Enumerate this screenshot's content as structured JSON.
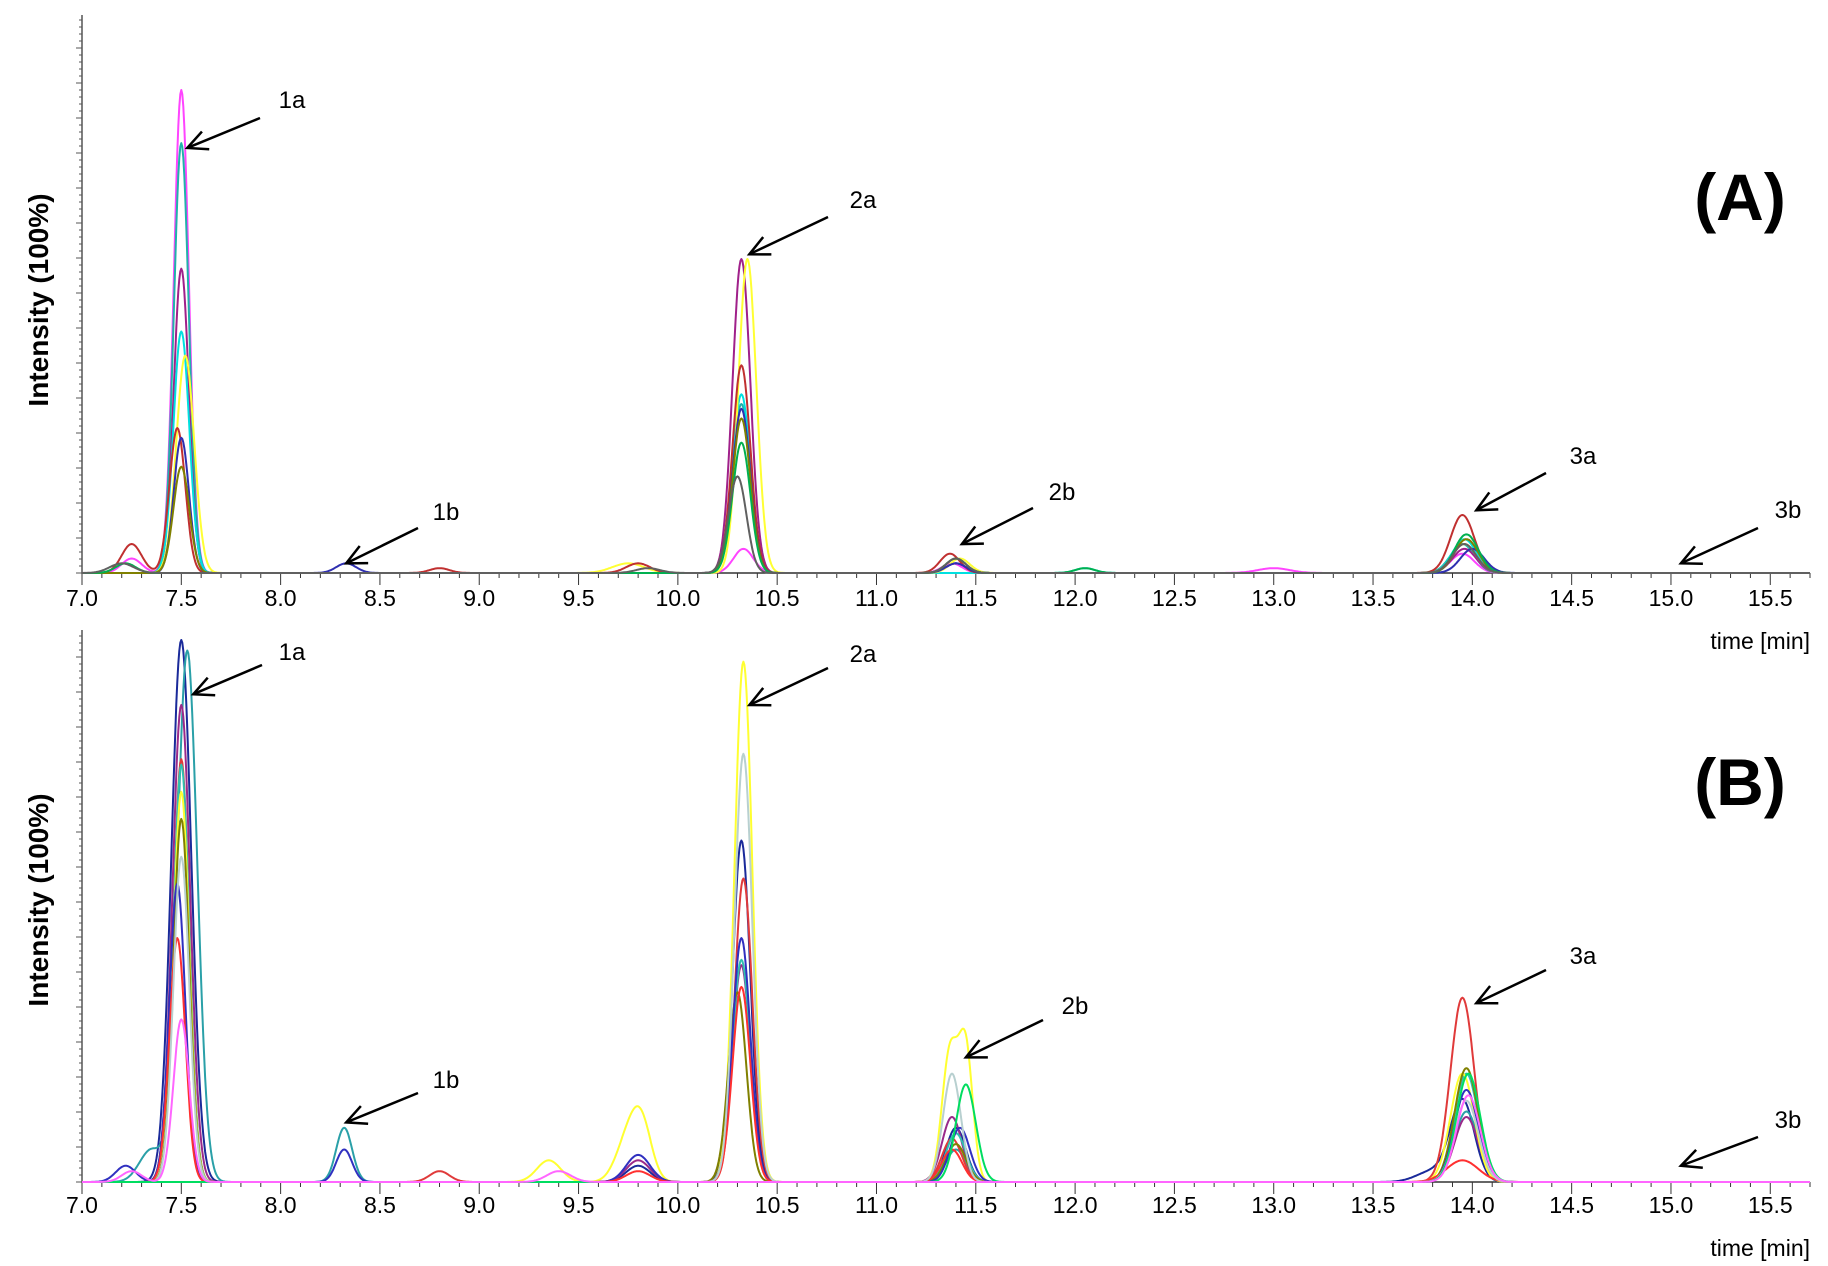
{
  "chart_data": [
    {
      "type": "line",
      "panel_label": "(A)",
      "ylabel": "Intensity (100%)",
      "xlabel": "time [min]",
      "xlim": [
        7.0,
        15.7
      ],
      "ylim": [
        0,
        100
      ],
      "xticks": [
        "7.0",
        "7.5",
        "8.0",
        "8.5",
        "9.0",
        "9.5",
        "10.0",
        "10.5",
        "11.0",
        "11.5",
        "12.0",
        "12.5",
        "13.0",
        "13.5",
        "14.0",
        "14.5",
        "15.0",
        "15.5"
      ],
      "grid": false,
      "annotations": [
        {
          "label": "1a",
          "x": 7.53,
          "y": 88
        },
        {
          "label": "1b",
          "x": 8.33,
          "y": 2
        },
        {
          "label": "2a",
          "x": 10.36,
          "y": 66
        },
        {
          "label": "2b",
          "x": 11.43,
          "y": 6
        },
        {
          "label": "3a",
          "x": 14.02,
          "y": 13
        },
        {
          "label": "3b",
          "x": 15.05,
          "y": 2
        }
      ],
      "series": [
        {
          "color": "#ff44ff",
          "peaks": [
            [
              7.25,
              3,
              0.05
            ],
            [
              7.5,
              100,
              0.038
            ],
            [
              10.33,
              5,
              0.05
            ],
            [
              11.38,
              2,
              0.05
            ],
            [
              13.0,
              1,
              0.08
            ],
            [
              13.95,
              4,
              0.06
            ]
          ]
        },
        {
          "color": "#20b2aa",
          "peaks": [
            [
              7.5,
              89,
              0.038
            ],
            [
              10.32,
              35,
              0.045
            ],
            [
              11.4,
              2,
              0.05
            ],
            [
              13.95,
              6,
              0.06
            ]
          ]
        },
        {
          "color": "#a0208a",
          "peaks": [
            [
              7.5,
              63,
              0.038
            ],
            [
              10.32,
              65,
              0.045
            ],
            [
              11.4,
              2,
              0.05
            ],
            [
              13.96,
              5,
              0.06
            ]
          ]
        },
        {
          "color": "#00e0e0",
          "peaks": [
            [
              7.5,
              50,
              0.04
            ],
            [
              10.32,
              37,
              0.045
            ],
            [
              12.05,
              1,
              0.05
            ],
            [
              13.96,
              7,
              0.06
            ]
          ]
        },
        {
          "color": "#ffff33",
          "peaks": [
            [
              7.52,
              45,
              0.045
            ],
            [
              9.75,
              2,
              0.08
            ],
            [
              10.35,
              65,
              0.045
            ],
            [
              11.42,
              3,
              0.05
            ],
            [
              13.96,
              6,
              0.06
            ]
          ]
        },
        {
          "color": "#c03030",
          "peaks": [
            [
              7.25,
              6,
              0.05
            ],
            [
              7.48,
              30,
              0.04
            ],
            [
              8.8,
              1,
              0.05
            ],
            [
              9.8,
              2,
              0.06
            ],
            [
              10.32,
              43,
              0.045
            ],
            [
              11.37,
              4,
              0.05
            ],
            [
              13.95,
              12,
              0.06
            ]
          ]
        },
        {
          "color": "#2f2fb0",
          "peaks": [
            [
              7.5,
              28,
              0.038
            ],
            [
              8.33,
              2,
              0.05
            ],
            [
              10.32,
              34,
              0.045
            ],
            [
              11.4,
              2,
              0.05
            ],
            [
              14.0,
              5,
              0.06
            ]
          ]
        },
        {
          "color": "#808000",
          "peaks": [
            [
              7.5,
              22,
              0.04
            ],
            [
              10.32,
              32,
              0.045
            ],
            [
              11.4,
              3,
              0.05
            ],
            [
              13.97,
              7,
              0.06
            ]
          ]
        },
        {
          "color": "#00b050",
          "peaks": [
            [
              7.22,
              2,
              0.05
            ],
            [
              10.32,
              27,
              0.045
            ],
            [
              11.4,
              3,
              0.05
            ],
            [
              12.05,
              1,
              0.05
            ],
            [
              13.97,
              8,
              0.06
            ]
          ]
        },
        {
          "color": "#606060",
          "peaks": [
            [
              7.2,
              2,
              0.06
            ],
            [
              9.85,
              1,
              0.06
            ],
            [
              10.3,
              20,
              0.045
            ],
            [
              11.4,
              3,
              0.05
            ],
            [
              13.96,
              6,
              0.06
            ]
          ]
        }
      ]
    },
    {
      "type": "line",
      "panel_label": "(B)",
      "ylabel": "Intensity (100%)",
      "xlabel": "time [min]",
      "xlim": [
        7.0,
        15.7
      ],
      "ylim": [
        0,
        100
      ],
      "xticks": [
        "7.0",
        "7.5",
        "8.0",
        "8.5",
        "9.0",
        "9.5",
        "10.0",
        "10.5",
        "11.0",
        "11.5",
        "12.0",
        "12.5",
        "13.0",
        "13.5",
        "14.0",
        "14.5",
        "15.0",
        "15.5"
      ],
      "grid": false,
      "annotations": [
        {
          "label": "1a",
          "x": 7.56,
          "y": 90
        },
        {
          "label": "1b",
          "x": 8.33,
          "y": 11
        },
        {
          "label": "2a",
          "x": 10.36,
          "y": 88
        },
        {
          "label": "2b",
          "x": 11.45,
          "y": 23
        },
        {
          "label": "3a",
          "x": 14.02,
          "y": 33
        },
        {
          "label": "3b",
          "x": 15.05,
          "y": 3
        }
      ],
      "series": [
        {
          "color": "#1a2a9a",
          "peaks": [
            [
              7.5,
              100,
              0.05
            ],
            [
              9.8,
              3,
              0.06
            ],
            [
              10.32,
              63,
              0.045
            ],
            [
              11.4,
              10,
              0.05
            ],
            [
              13.8,
              2,
              0.08
            ],
            [
              13.95,
              15,
              0.06
            ]
          ]
        },
        {
          "color": "#2aa0a8",
          "peaks": [
            [
              7.35,
              6,
              0.06
            ],
            [
              7.53,
              98,
              0.05
            ],
            [
              8.32,
              10,
              0.04
            ],
            [
              11.4,
              6,
              0.05
            ],
            [
              13.97,
              13,
              0.06
            ]
          ]
        },
        {
          "color": "#9a2a8a",
          "peaks": [
            [
              7.5,
              88,
              0.045
            ],
            [
              9.8,
              4,
              0.06
            ],
            [
              10.32,
              40,
              0.045
            ],
            [
              11.38,
              12,
              0.05
            ],
            [
              13.97,
              12,
              0.06
            ]
          ]
        },
        {
          "color": "#e03a3a",
          "peaks": [
            [
              7.5,
              78,
              0.04
            ],
            [
              8.8,
              2,
              0.05
            ],
            [
              10.33,
              56,
              0.045
            ],
            [
              11.38,
              8,
              0.05
            ],
            [
              13.95,
              34,
              0.06
            ]
          ]
        },
        {
          "color": "#30c0b0",
          "peaks": [
            [
              7.5,
              77,
              0.04
            ],
            [
              10.32,
              41,
              0.045
            ],
            [
              11.4,
              9,
              0.05
            ],
            [
              13.97,
              20,
              0.06
            ]
          ]
        },
        {
          "color": "#ffff30",
          "peaks": [
            [
              7.5,
              72,
              0.04
            ],
            [
              9.35,
              4,
              0.06
            ],
            [
              9.75,
              8,
              0.06
            ],
            [
              9.82,
              9,
              0.05
            ],
            [
              10.33,
              96,
              0.045
            ],
            [
              11.37,
              24,
              0.04
            ],
            [
              11.45,
              24,
              0.035
            ],
            [
              13.95,
              20,
              0.06
            ]
          ]
        },
        {
          "color": "#808000",
          "peaks": [
            [
              7.5,
              67,
              0.04
            ],
            [
              10.3,
              35,
              0.045
            ],
            [
              11.4,
              7,
              0.05
            ],
            [
              13.97,
              21,
              0.06
            ]
          ]
        },
        {
          "color": "#3030c0",
          "peaks": [
            [
              7.22,
              3,
              0.05
            ],
            [
              7.48,
              55,
              0.04
            ],
            [
              8.32,
              6,
              0.04
            ],
            [
              9.8,
              5,
              0.06
            ],
            [
              10.32,
              45,
              0.045
            ],
            [
              11.42,
              10,
              0.05
            ],
            [
              13.97,
              17,
              0.06
            ]
          ]
        },
        {
          "color": "#ff3030",
          "peaks": [
            [
              7.48,
              45,
              0.04
            ],
            [
              9.8,
              2,
              0.06
            ],
            [
              10.32,
              36,
              0.045
            ],
            [
              11.38,
              6,
              0.05
            ],
            [
              13.95,
              4,
              0.08
            ]
          ]
        },
        {
          "color": "#b8d0d0",
          "peaks": [
            [
              7.5,
              60,
              0.04
            ],
            [
              10.33,
              79,
              0.045
            ],
            [
              11.38,
              20,
              0.045
            ],
            [
              13.97,
              15,
              0.06
            ]
          ]
        },
        {
          "color": "#00dd60",
          "peaks": [
            [
              11.45,
              18,
              0.05
            ],
            [
              13.98,
              20,
              0.06
            ]
          ]
        },
        {
          "color": "#ff66ff",
          "peaks": [
            [
              7.25,
              2,
              0.05
            ],
            [
              7.5,
              30,
              0.04
            ],
            [
              9.4,
              2,
              0.06
            ],
            [
              13.98,
              16,
              0.06
            ]
          ]
        }
      ]
    }
  ]
}
